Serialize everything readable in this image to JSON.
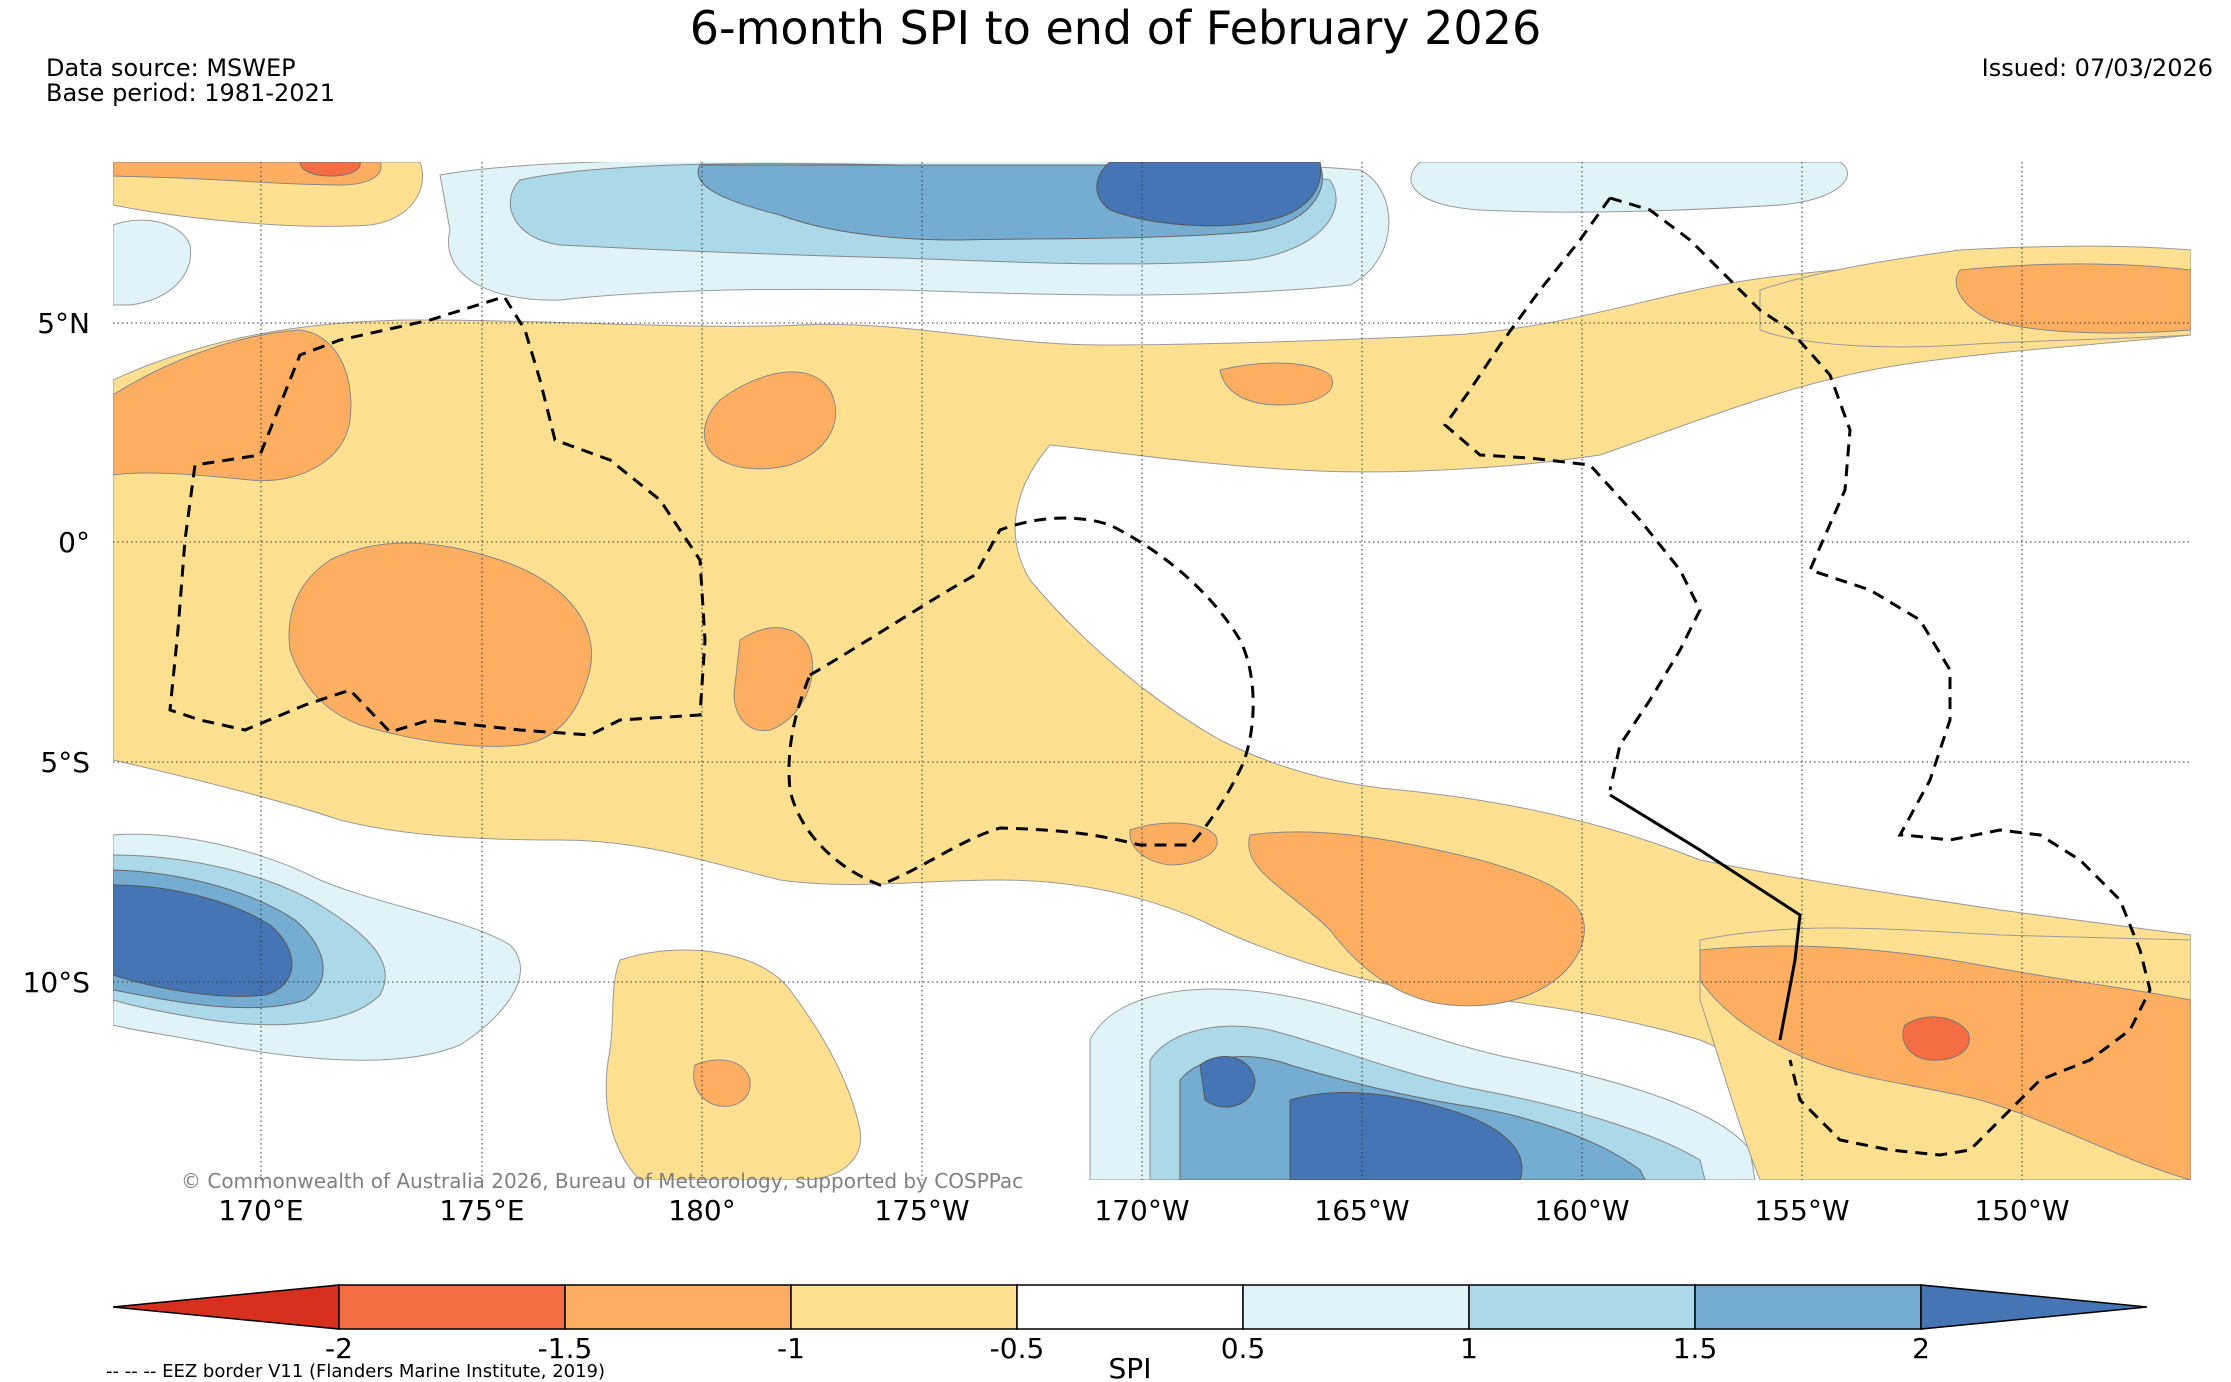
{
  "title": "6-month SPI to end of February 2026",
  "data_source": "Data source: MSWEP",
  "base_period": "Base period: 1981-2021",
  "issued": "Issued: 07/03/2026",
  "copyright": "© Commonwealth of Australia 2026, Bureau of Meteorology, supported by COSPPac",
  "lat_labels": [
    "5°N",
    "0°",
    "5°S",
    "10°S"
  ],
  "lon_labels": [
    "170°E",
    "175°E",
    "180°",
    "175°W",
    "170°W",
    "165°W",
    "160°W",
    "155°W",
    "150°W"
  ],
  "colorbar": {
    "label": "SPI",
    "ticks": [
      "-2",
      "-1.5",
      "-1",
      "-0.5",
      "0.5",
      "1",
      "1.5",
      "2"
    ],
    "colors": [
      "#d7301f",
      "#f46d43",
      "#fdae61",
      "#fee090",
      "#ffffff",
      "#e0f3f8",
      "#abd9e9",
      "#74add1",
      "#4575b4"
    ]
  },
  "legend_note": "-- -- -- EEZ border V11 (Flanders Marine Institute, 2019)"
}
